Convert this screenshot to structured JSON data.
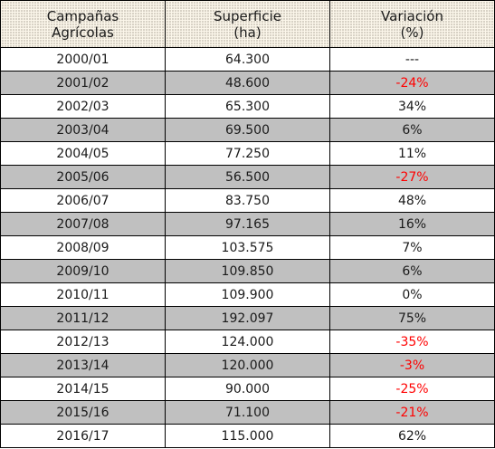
{
  "table": {
    "headers": [
      {
        "line1": "Campañas",
        "line2": "Agrícolas"
      },
      {
        "line1": "Superficie",
        "line2": "(ha)"
      },
      {
        "line1": "Variación",
        "line2": "(%)"
      }
    ],
    "rows": [
      {
        "campaign": "2000/01",
        "area": "64.300",
        "variation": "---",
        "negative": false
      },
      {
        "campaign": "2001/02",
        "area": "48.600",
        "variation": "-24%",
        "negative": true
      },
      {
        "campaign": "2002/03",
        "area": "65.300",
        "variation": "34%",
        "negative": false
      },
      {
        "campaign": "2003/04",
        "area": "69.500",
        "variation": "6%",
        "negative": false
      },
      {
        "campaign": "2004/05",
        "area": "77.250",
        "variation": "11%",
        "negative": false
      },
      {
        "campaign": "2005/06",
        "area": "56.500",
        "variation": "-27%",
        "negative": true
      },
      {
        "campaign": "2006/07",
        "area": "83.750",
        "variation": "48%",
        "negative": false
      },
      {
        "campaign": "2007/08",
        "area": "97.165",
        "variation": "16%",
        "negative": false
      },
      {
        "campaign": "2008/09",
        "area": "103.575",
        "variation": "7%",
        "negative": false
      },
      {
        "campaign": "2009/10",
        "area": "109.850",
        "variation": "6%",
        "negative": false
      },
      {
        "campaign": "2010/11",
        "area": "109.900",
        "variation": "0%",
        "negative": false
      },
      {
        "campaign": "2011/12",
        "area": "192.097",
        "variation": "75%",
        "negative": false
      },
      {
        "campaign": "2012/13",
        "area": "124.000",
        "variation": "-35%",
        "negative": true
      },
      {
        "campaign": "2013/14",
        "area": "120.000",
        "variation": "-3%",
        "negative": true
      },
      {
        "campaign": "2014/15",
        "area": "90.000",
        "variation": "-25%",
        "negative": true
      },
      {
        "campaign": "2015/16",
        "area": "71.100",
        "variation": "-21%",
        "negative": true
      },
      {
        "campaign": "2016/17",
        "area": "115.000",
        "variation": "62%",
        "negative": false
      }
    ]
  },
  "colors": {
    "negative": "#ff0000",
    "shaded_row": "#c0c0c0",
    "header_bg": "#fbf6ea",
    "border": "#000000"
  }
}
